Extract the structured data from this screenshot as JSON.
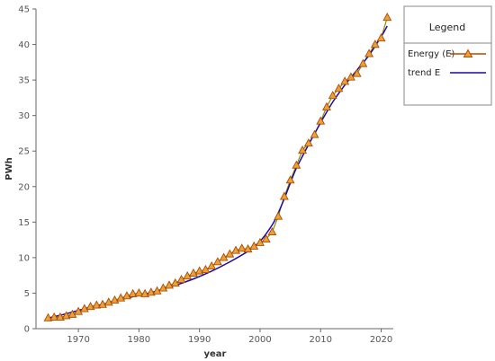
{
  "chart_data": {
    "type": "line",
    "title": "",
    "xlabel": "year",
    "ylabel": "PWh",
    "xlim": [
      1963,
      2022
    ],
    "ylim": [
      0,
      45
    ],
    "x_ticks": [
      1970,
      1980,
      1990,
      2000,
      2010,
      2020
    ],
    "y_ticks": [
      0,
      5,
      10,
      15,
      20,
      25,
      30,
      35,
      40,
      45
    ],
    "grid": false,
    "legend": {
      "title": "Legend",
      "position": "top-right, outside plot"
    },
    "series": [
      {
        "name": "Energy (E)",
        "style": "line-with-triangle-markers",
        "color": "#e9a23b",
        "line_color": "#8c8c00",
        "marker_stroke": "#b04a00",
        "x": [
          1965,
          1966,
          1967,
          1968,
          1969,
          1970,
          1971,
          1972,
          1973,
          1974,
          1975,
          1976,
          1977,
          1978,
          1979,
          1980,
          1981,
          1982,
          1983,
          1984,
          1985,
          1986,
          1987,
          1988,
          1989,
          1990,
          1991,
          1992,
          1993,
          1994,
          1995,
          1996,
          1997,
          1998,
          1999,
          2000,
          2001,
          2002,
          2003,
          2004,
          2005,
          2006,
          2007,
          2008,
          2009,
          2010,
          2011,
          2012,
          2013,
          2014,
          2015,
          2016,
          2017,
          2018,
          2019,
          2020,
          2021
        ],
        "y": [
          1.5,
          1.6,
          1.6,
          1.8,
          2.0,
          2.4,
          2.8,
          3.1,
          3.3,
          3.4,
          3.7,
          4.0,
          4.3,
          4.6,
          4.9,
          5.0,
          4.9,
          5.1,
          5.3,
          5.7,
          6.1,
          6.4,
          6.9,
          7.4,
          7.8,
          8.1,
          8.3,
          8.8,
          9.4,
          10.0,
          10.5,
          11.0,
          11.3,
          11.2,
          11.6,
          12.1,
          12.6,
          13.6,
          15.8,
          18.6,
          20.9,
          23.0,
          25.1,
          26.1,
          27.3,
          29.2,
          31.2,
          32.8,
          33.8,
          34.8,
          35.4,
          35.9,
          37.3,
          38.7,
          40.0,
          40.9,
          43.8
        ]
      },
      {
        "name": "trend E",
        "style": "line",
        "color": "#1a0aa8",
        "x": [
          1965,
          1968,
          1971,
          1974,
          1977,
          1980,
          1983,
          1986,
          1989,
          1992,
          1995,
          1998,
          2000,
          2002,
          2003,
          2004,
          2005,
          2006,
          2008,
          2010,
          2012,
          2014,
          2016,
          2018,
          2020,
          2021
        ],
        "y": [
          1.5,
          2.1,
          2.8,
          3.4,
          4.1,
          4.7,
          5.3,
          6.1,
          7.0,
          8.1,
          9.4,
          10.9,
          12.3,
          14.6,
          16.3,
          18.3,
          20.5,
          22.6,
          25.9,
          29.0,
          31.9,
          34.3,
          36.4,
          38.5,
          41.1,
          42.6
        ]
      }
    ]
  }
}
